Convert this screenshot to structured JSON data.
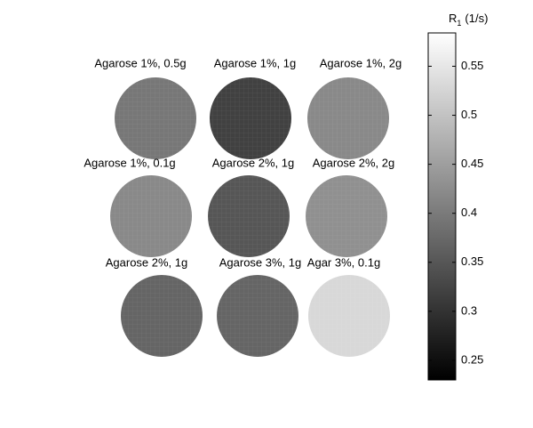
{
  "chart_data": {
    "type": "disc-grid",
    "panels": [
      {
        "label": "Agarose 1%, 0.5g",
        "value": 0.395
      },
      {
        "label": "Agarose 1%, 1g",
        "value": 0.32
      },
      {
        "label": "Agarose 1%, 2g",
        "value": 0.42
      },
      {
        "label": "Agarose 1%, 0.1g",
        "value": 0.42
      },
      {
        "label": "Agarose 2%, 1g",
        "value": 0.35
      },
      {
        "label": "Agarose 2%, 2g",
        "value": 0.43
      },
      {
        "label": "Agarose 2%, 1g",
        "value": 0.37
      },
      {
        "label": "Agarose 3%, 1g",
        "value": 0.37
      },
      {
        "label": "Agar 3%, 0.1g",
        "value": 0.53
      }
    ],
    "colorbar": {
      "label": {
        "symbol": "R",
        "subscript": "1",
        "unit": "(1/s)"
      },
      "clim": [
        0.23,
        0.584
      ],
      "ticks": [
        0.25,
        0.3,
        0.35,
        0.4,
        0.45,
        0.5,
        0.55
      ],
      "colormap": "gray"
    }
  }
}
